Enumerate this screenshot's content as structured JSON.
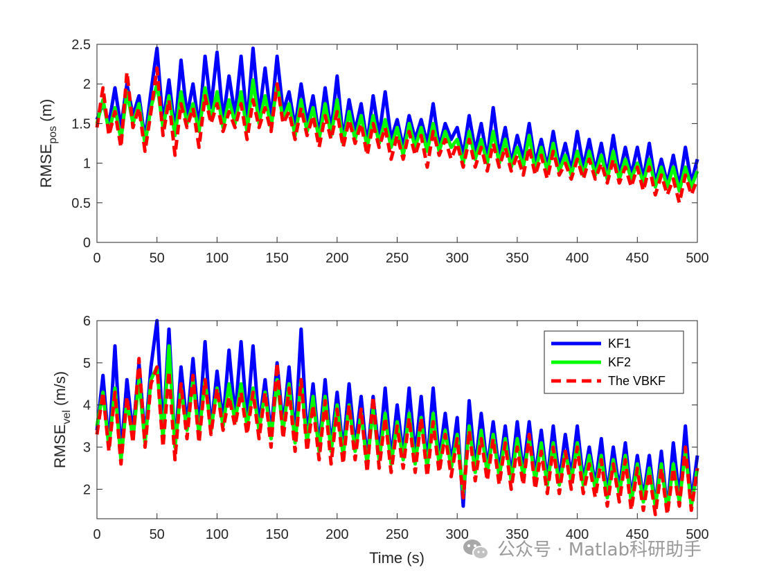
{
  "chart_data": [
    {
      "type": "line",
      "xlabel": "",
      "ylabel_main": "RMSE",
      "ylabel_sub": "pos",
      "ylabel_unit": " (m)",
      "xlim": [
        0,
        500
      ],
      "ylim": [
        0,
        2.5
      ],
      "xticks": [
        "0",
        "50",
        "100",
        "150",
        "200",
        "250",
        "300",
        "350",
        "400",
        "450",
        "500"
      ],
      "yticks": [
        "0",
        "0.5",
        "1",
        "1.5",
        "2",
        "2.5"
      ],
      "grid": false,
      "x": [
        0,
        5,
        10,
        15,
        20,
        25,
        30,
        35,
        40,
        45,
        50,
        55,
        60,
        65,
        70,
        75,
        80,
        85,
        90,
        95,
        100,
        105,
        110,
        115,
        120,
        125,
        130,
        135,
        140,
        145,
        150,
        155,
        160,
        165,
        170,
        175,
        180,
        185,
        190,
        195,
        200,
        205,
        210,
        215,
        220,
        225,
        230,
        235,
        240,
        245,
        250,
        255,
        260,
        265,
        270,
        275,
        280,
        285,
        290,
        295,
        300,
        305,
        310,
        315,
        320,
        325,
        330,
        335,
        340,
        345,
        350,
        355,
        360,
        365,
        370,
        375,
        380,
        385,
        390,
        395,
        400,
        405,
        410,
        415,
        420,
        425,
        430,
        435,
        440,
        445,
        450,
        455,
        460,
        465,
        470,
        475,
        480,
        485,
        490,
        495,
        500
      ],
      "series": [
        {
          "name": "KF1",
          "color": "#0000ff",
          "dash": "solid",
          "values": [
            1.55,
            1.75,
            1.5,
            1.95,
            1.45,
            2.0,
            1.6,
            1.85,
            1.3,
            1.9,
            2.45,
            1.5,
            2.05,
            1.4,
            2.3,
            1.6,
            2.0,
            1.45,
            2.35,
            1.7,
            2.4,
            1.55,
            2.1,
            1.6,
            2.35,
            1.5,
            2.45,
            1.6,
            2.2,
            1.55,
            2.35,
            1.65,
            1.9,
            1.45,
            2.0,
            1.5,
            1.85,
            1.35,
            1.95,
            1.4,
            2.1,
            1.3,
            1.8,
            1.4,
            1.75,
            1.25,
            1.85,
            1.35,
            1.9,
            1.3,
            1.55,
            1.2,
            1.6,
            1.3,
            1.55,
            1.25,
            1.75,
            1.2,
            1.5,
            1.3,
            1.45,
            1.1,
            1.6,
            1.15,
            1.5,
            1.05,
            1.7,
            1.1,
            1.45,
            1.0,
            1.35,
            1.05,
            1.5,
            1.0,
            1.3,
            0.95,
            1.4,
            0.95,
            1.25,
            0.9,
            1.4,
            0.95,
            1.3,
            0.9,
            1.25,
            0.85,
            1.35,
            0.85,
            1.2,
            0.85,
            1.2,
            0.8,
            1.25,
            0.75,
            1.05,
            0.75,
            1.1,
            0.7,
            1.2,
            0.75,
            1.05
          ]
        },
        {
          "name": "KF2",
          "color": "#00ff00",
          "dash": "solid",
          "values": [
            1.5,
            1.8,
            1.4,
            1.7,
            1.3,
            1.9,
            1.5,
            1.75,
            1.25,
            1.7,
            2.0,
            1.45,
            1.85,
            1.35,
            1.9,
            1.5,
            1.75,
            1.4,
            1.95,
            1.55,
            1.9,
            1.45,
            1.8,
            1.5,
            1.9,
            1.4,
            2.05,
            1.5,
            1.85,
            1.45,
            2.0,
            1.55,
            1.75,
            1.35,
            1.8,
            1.4,
            1.7,
            1.3,
            1.75,
            1.35,
            1.8,
            1.25,
            1.65,
            1.3,
            1.6,
            1.2,
            1.6,
            1.25,
            1.55,
            1.2,
            1.45,
            1.1,
            1.5,
            1.2,
            1.45,
            1.15,
            1.5,
            1.15,
            1.4,
            1.2,
            1.3,
            1.0,
            1.4,
            1.05,
            1.3,
            1.0,
            1.4,
            1.0,
            1.3,
            0.95,
            1.2,
            0.95,
            1.35,
            0.9,
            1.2,
            0.9,
            1.25,
            0.9,
            1.1,
            0.85,
            1.15,
            0.85,
            1.15,
            0.85,
            1.1,
            0.8,
            1.15,
            0.8,
            1.05,
            0.8,
            1.0,
            0.75,
            1.05,
            0.7,
            0.95,
            0.7,
            0.95,
            0.65,
            0.95,
            0.7,
            0.9
          ]
        },
        {
          "name": "The VBKF",
          "color": "#ff0000",
          "dash": "dashed",
          "values": [
            1.45,
            1.95,
            1.35,
            1.65,
            1.2,
            2.15,
            1.45,
            1.7,
            1.15,
            1.65,
            2.2,
            1.35,
            1.8,
            1.1,
            1.75,
            1.45,
            1.7,
            1.2,
            1.85,
            1.5,
            1.75,
            1.4,
            1.65,
            1.45,
            1.75,
            1.3,
            1.8,
            1.45,
            1.7,
            1.4,
            2.0,
            1.5,
            1.65,
            1.3,
            1.7,
            1.35,
            1.6,
            1.2,
            1.6,
            1.3,
            1.65,
            1.2,
            1.55,
            1.25,
            1.5,
            1.1,
            1.5,
            1.2,
            1.45,
            1.05,
            1.35,
            1.05,
            1.4,
            1.1,
            1.35,
            0.95,
            1.4,
            1.1,
            1.3,
            1.05,
            1.25,
            0.95,
            1.3,
            0.95,
            1.2,
            0.9,
            1.25,
            0.95,
            1.2,
            0.9,
            1.1,
            0.85,
            1.2,
            0.85,
            1.1,
            0.8,
            1.15,
            0.85,
            1.0,
            0.8,
            1.05,
            0.8,
            1.05,
            0.8,
            1.0,
            0.75,
            1.05,
            0.75,
            0.95,
            0.7,
            0.95,
            0.65,
            0.95,
            0.6,
            0.85,
            0.6,
            0.8,
            0.5,
            0.85,
            0.6,
            0.8
          ]
        }
      ]
    },
    {
      "type": "line",
      "xlabel": "Time (s)",
      "ylabel_main": "RMSE",
      "ylabel_sub": "vel",
      "ylabel_unit": " (m/s)",
      "xlim": [
        0,
        500
      ],
      "ylim": [
        1.3,
        6.0
      ],
      "xticks": [
        "0",
        "50",
        "100",
        "150",
        "200",
        "250",
        "300",
        "350",
        "400",
        "450",
        "500"
      ],
      "yticks": [
        "2",
        "3",
        "4",
        "5",
        "6"
      ],
      "grid": false,
      "legend": {
        "placement": "top-right",
        "entries": [
          "KF1",
          "KF2",
          "The VBKF"
        ]
      },
      "x": [
        0,
        5,
        10,
        15,
        20,
        25,
        30,
        35,
        40,
        45,
        50,
        55,
        60,
        65,
        70,
        75,
        80,
        85,
        90,
        95,
        100,
        105,
        110,
        115,
        120,
        125,
        130,
        135,
        140,
        145,
        150,
        155,
        160,
        165,
        170,
        175,
        180,
        185,
        190,
        195,
        200,
        205,
        210,
        215,
        220,
        225,
        230,
        235,
        240,
        245,
        250,
        255,
        260,
        265,
        270,
        275,
        280,
        285,
        290,
        295,
        300,
        305,
        310,
        315,
        320,
        325,
        330,
        335,
        340,
        345,
        350,
        355,
        360,
        365,
        370,
        375,
        380,
        385,
        390,
        395,
        400,
        405,
        410,
        415,
        420,
        425,
        430,
        435,
        440,
        445,
        450,
        455,
        460,
        465,
        470,
        475,
        480,
        485,
        490,
        495,
        500
      ],
      "series": [
        {
          "name": "KF1",
          "color": "#0000ff",
          "dash": "solid",
          "values": [
            3.4,
            4.7,
            3.0,
            5.4,
            2.8,
            4.6,
            3.3,
            5.0,
            3.2,
            4.9,
            6.0,
            3.3,
            5.8,
            3.0,
            4.9,
            3.5,
            5.1,
            3.4,
            5.5,
            3.4,
            4.8,
            3.6,
            5.3,
            3.7,
            5.5,
            3.6,
            5.4,
            3.5,
            4.6,
            3.3,
            5.0,
            3.5,
            4.9,
            3.2,
            5.8,
            3.2,
            4.5,
            3.0,
            4.6,
            3.0,
            4.3,
            2.9,
            4.5,
            3.0,
            4.2,
            2.7,
            4.2,
            2.8,
            4.4,
            2.7,
            4.0,
            2.8,
            4.4,
            2.8,
            4.2,
            2.6,
            4.4,
            2.7,
            3.8,
            2.6,
            3.7,
            1.6,
            4.1,
            2.5,
            3.8,
            2.5,
            3.6,
            2.4,
            3.5,
            2.3,
            3.6,
            2.4,
            3.6,
            2.3,
            3.4,
            2.2,
            3.5,
            2.2,
            3.3,
            2.3,
            3.5,
            2.2,
            3.0,
            2.1,
            3.2,
            1.9,
            3.0,
            2.0,
            3.1,
            1.8,
            2.8,
            1.8,
            2.8,
            1.6,
            2.9,
            1.5,
            3.1,
            1.8,
            3.5,
            1.7,
            2.8
          ]
        },
        {
          "name": "KF2",
          "color": "#00ff00",
          "dash": "solid",
          "values": [
            3.5,
            4.3,
            3.0,
            4.4,
            2.7,
            4.1,
            3.2,
            4.6,
            3.1,
            4.6,
            4.9,
            3.2,
            5.4,
            3.0,
            4.4,
            3.4,
            4.6,
            3.3,
            4.6,
            3.4,
            4.4,
            3.5,
            4.5,
            3.6,
            4.5,
            3.5,
            4.4,
            3.4,
            4.3,
            3.2,
            4.6,
            3.4,
            4.5,
            3.1,
            4.6,
            3.1,
            4.2,
            2.9,
            4.2,
            2.9,
            4.0,
            2.8,
            4.0,
            2.9,
            3.8,
            2.6,
            3.9,
            2.7,
            3.8,
            2.6,
            3.6,
            2.7,
            3.8,
            2.6,
            3.7,
            2.5,
            3.8,
            2.6,
            3.4,
            2.5,
            3.3,
            1.9,
            3.5,
            2.4,
            3.4,
            2.4,
            3.3,
            2.3,
            3.2,
            2.2,
            3.2,
            2.3,
            3.2,
            2.2,
            3.1,
            2.1,
            3.1,
            2.1,
            2.9,
            2.2,
            3.1,
            2.1,
            2.8,
            2.0,
            2.8,
            1.8,
            2.7,
            1.9,
            2.8,
            1.7,
            2.6,
            1.7,
            2.5,
            1.6,
            2.6,
            1.5,
            2.6,
            1.7,
            2.9,
            1.6,
            2.5
          ]
        },
        {
          "name": "The VBKF",
          "color": "#ff0000",
          "dash": "dashed",
          "values": [
            3.3,
            4.3,
            2.9,
            4.3,
            2.6,
            4.2,
            3.1,
            5.1,
            3.0,
            4.5,
            4.9,
            3.0,
            4.8,
            2.7,
            4.5,
            3.2,
            4.7,
            3.1,
            4.6,
            3.3,
            4.4,
            3.4,
            4.2,
            3.5,
            4.3,
            3.3,
            4.3,
            3.2,
            4.3,
            3.0,
            5.0,
            3.2,
            4.4,
            2.9,
            4.6,
            2.9,
            4.0,
            2.7,
            4.1,
            2.6,
            3.9,
            2.6,
            4.0,
            2.7,
            3.9,
            2.4,
            4.2,
            2.5,
            3.7,
            2.4,
            3.5,
            2.5,
            3.7,
            2.4,
            3.7,
            2.3,
            3.6,
            2.4,
            3.3,
            2.3,
            3.2,
            1.8,
            3.4,
            2.2,
            3.2,
            2.2,
            3.2,
            2.1,
            3.1,
            2.0,
            3.0,
            2.1,
            3.3,
            2.0,
            2.9,
            1.9,
            3.0,
            1.9,
            2.9,
            2.0,
            3.0,
            1.9,
            2.6,
            1.8,
            2.7,
            1.6,
            2.6,
            1.7,
            2.7,
            1.5,
            2.5,
            1.5,
            2.4,
            1.4,
            2.5,
            1.4,
            2.5,
            1.6,
            3.0,
            1.5,
            2.5
          ]
        }
      ]
    }
  ],
  "watermark": {
    "text": "公众号 · Matlab科研助手",
    "icon": "wechat-icon"
  }
}
